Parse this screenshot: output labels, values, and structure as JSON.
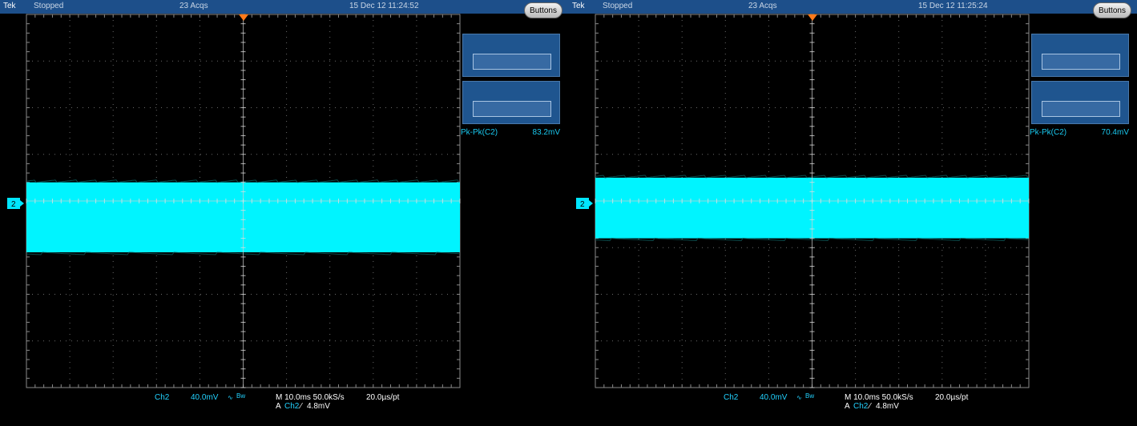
{
  "colors": {
    "trace": "#00f4ff",
    "title_bar": "#1d4f8a",
    "grid": "#8a8a8a",
    "trigger_marker": "#ff7a1a"
  },
  "screens": [
    {
      "title": {
        "brand": "Tek",
        "state": "Stopped",
        "acquisitions": "23 Acqs",
        "timestamp": "15 Dec 12 11:24:52"
      },
      "buttons_label": "Buttons",
      "measurement": {
        "label": "Pk-Pk(C2)",
        "value": "83.2mV"
      },
      "channel_marker": "2",
      "bottom": {
        "channel": "Ch2",
        "scale": "40.0mV",
        "coupling_icon": "bandwidth-icon",
        "bandwidth": "Bw",
        "timebase": "M 10.0ms 50.0kS/s",
        "resolution": "20.0µs/pt",
        "trigger_prefix": "A",
        "trigger_channel": "Ch2",
        "trigger_level": "4.8mV"
      },
      "noise_band_divisions": {
        "top": 0.4,
        "bottom": -1.1
      }
    },
    {
      "title": {
        "brand": "Tek",
        "state": "Stopped",
        "acquisitions": "23 Acqs",
        "timestamp": "15 Dec 12 11:25:24"
      },
      "buttons_label": "Buttons",
      "measurement": {
        "label": "Pk-Pk(C2)",
        "value": "70.4mV"
      },
      "channel_marker": "2",
      "bottom": {
        "channel": "Ch2",
        "scale": "40.0mV",
        "coupling_icon": "bandwidth-icon",
        "bandwidth": "Bw",
        "timebase": "M 10.0ms 50.0kS/s",
        "resolution": "20.0µs/pt",
        "trigger_prefix": "A",
        "trigger_channel": "Ch2",
        "trigger_level": "4.8mV"
      },
      "noise_band_divisions": {
        "top": 0.5,
        "bottom": -0.8
      }
    }
  ]
}
